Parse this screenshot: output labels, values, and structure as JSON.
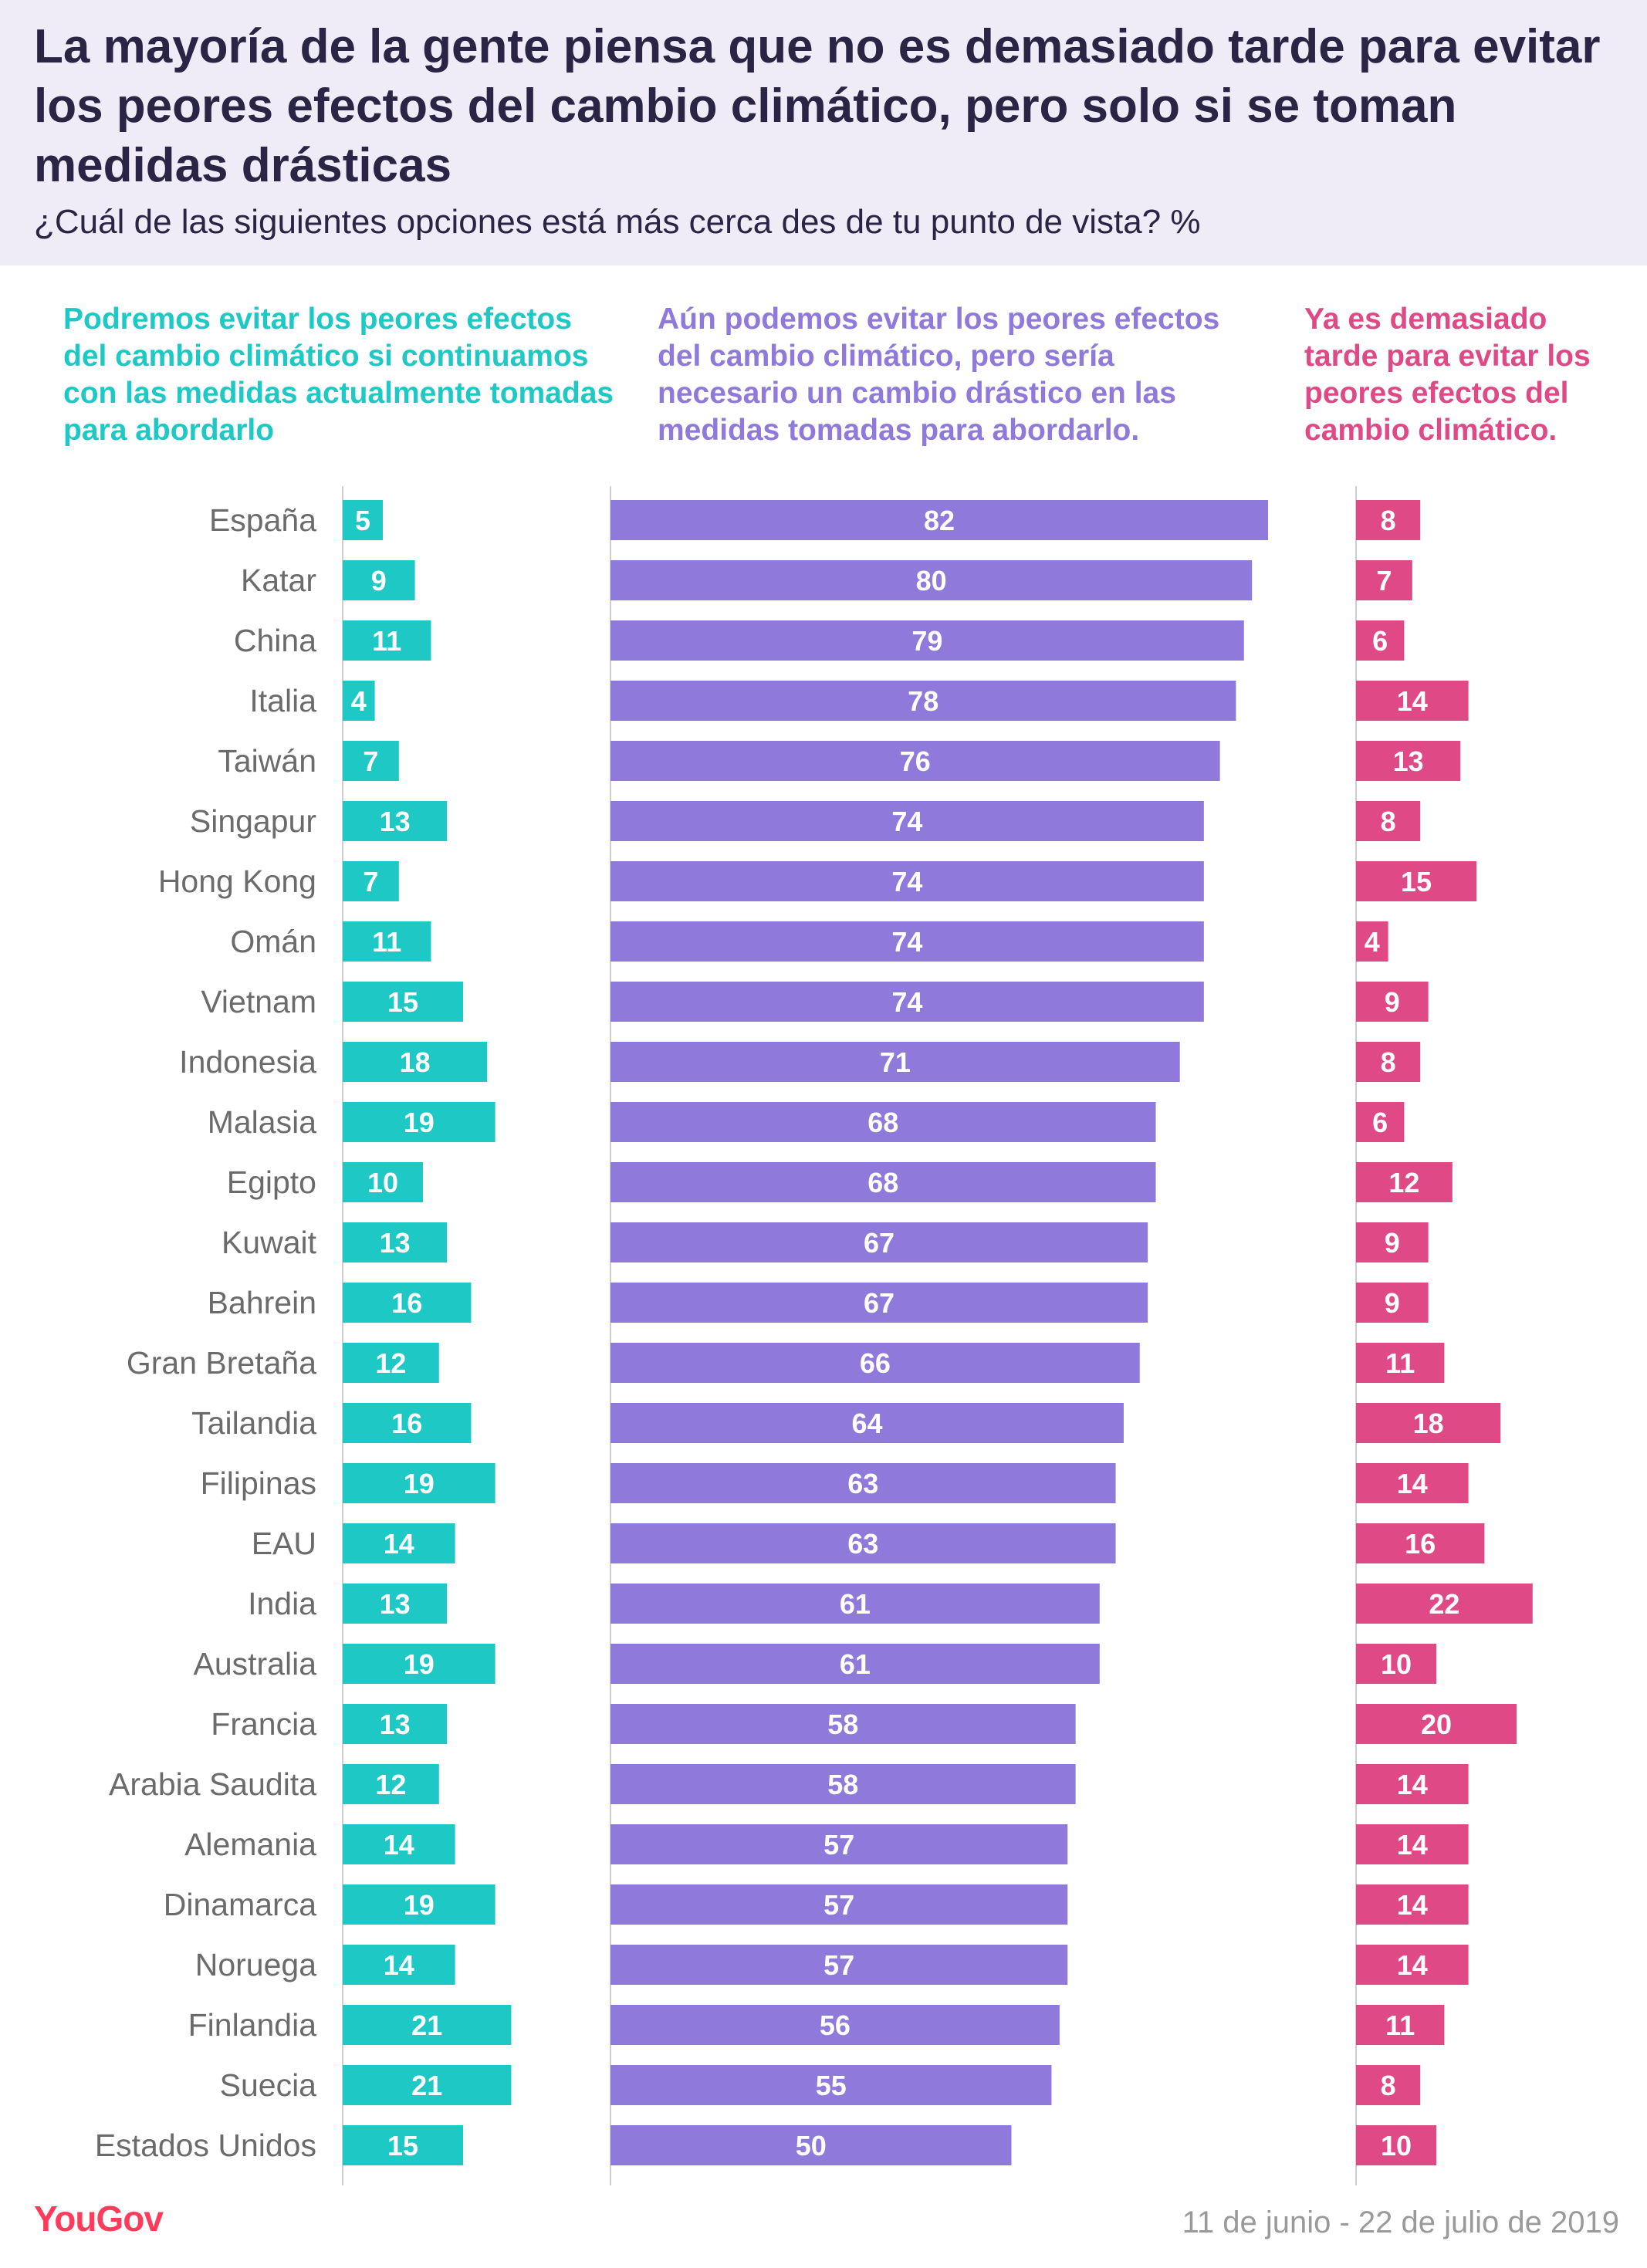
{
  "title": "La mayoría de la gente piensa que no es demasiado tarde para evitar los peores efectos del cambio climático, pero solo si se toman medidas drásticas",
  "subtitle": "¿Cuál de las siguientes opciones está más cerca des de tu punto de vista? %",
  "brand": "YouGov",
  "date_range": "11 de junio - 22 de julio de 2019",
  "colors": {
    "continue": "#1ec8c4",
    "drastic": "#8f79da",
    "too_late": "#df4a86",
    "header_bg": "#efecf7"
  },
  "chart_data": {
    "type": "bar",
    "orientation": "horizontal",
    "categories": [
      "España",
      "Katar",
      "China",
      "Italia",
      "Taiwán",
      "Singapur",
      "Hong Kong",
      "Omán",
      "Vietnam",
      "Indonesia",
      "Malasia",
      "Egipto",
      "Kuwait",
      "Bahrein",
      "Gran Bretaña",
      "Tailandia",
      "Filipinas",
      "EAU",
      "India",
      "Australia",
      "Francia",
      "Arabia Saudita",
      "Alemania",
      "Dinamarca",
      "Noruega",
      "Finlandia",
      "Suecia",
      "Estados Unidos"
    ],
    "series": [
      {
        "name": "Podremos evitar los peores efectos del cambio climático si continuamos con las medidas actualmente tomadas para abordarlo",
        "color": "#1ec8c4",
        "values": [
          5,
          9,
          11,
          4,
          7,
          13,
          7,
          11,
          15,
          18,
          19,
          10,
          13,
          16,
          12,
          16,
          19,
          14,
          13,
          19,
          13,
          12,
          14,
          19,
          14,
          21,
          21,
          15
        ]
      },
      {
        "name": "Aún podemos evitar los peores efectos del cambio climático, pero sería necesario un cambio drástico en las medidas tomadas para abordarlo.",
        "color": "#8f79da",
        "values": [
          82,
          80,
          79,
          78,
          76,
          74,
          74,
          74,
          74,
          71,
          68,
          68,
          67,
          67,
          66,
          64,
          63,
          63,
          61,
          61,
          58,
          58,
          57,
          57,
          57,
          56,
          55,
          50
        ]
      },
      {
        "name": "Ya es demasiado tarde para evitar los peores efectos del cambio climático.",
        "color": "#df4a86",
        "values": [
          8,
          7,
          6,
          14,
          13,
          8,
          15,
          4,
          9,
          8,
          6,
          12,
          9,
          9,
          11,
          18,
          14,
          16,
          22,
          10,
          20,
          14,
          14,
          14,
          14,
          11,
          8,
          10
        ]
      }
    ],
    "unit": "%",
    "data_labels": true,
    "grid": false
  }
}
